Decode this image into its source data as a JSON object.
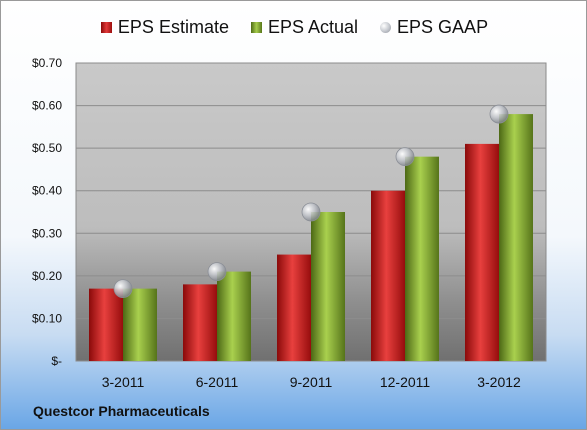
{
  "chart_data": {
    "type": "bar",
    "categories": [
      "3-2011",
      "6-2011",
      "9-2011",
      "12-2011",
      "3-2012"
    ],
    "series": [
      {
        "name": "EPS Estimate",
        "values": [
          0.17,
          0.18,
          0.25,
          0.4,
          0.51
        ]
      },
      {
        "name": "EPS Actual",
        "values": [
          0.17,
          0.21,
          0.35,
          0.48,
          0.58
        ]
      },
      {
        "name": "EPS GAAP",
        "values": [
          0.17,
          0.21,
          0.35,
          0.48,
          0.58
        ],
        "kind": "marker"
      }
    ],
    "yticks": [
      "$-",
      "$0.10",
      "$0.20",
      "$0.30",
      "$0.40",
      "$0.50",
      "$0.60",
      "$0.70"
    ],
    "ylim": [
      0,
      0.7
    ],
    "grid": true,
    "legend_position": "top"
  },
  "legend": {
    "estimate": "EPS Estimate",
    "actual": "EPS Actual",
    "gaap": "EPS GAAP"
  },
  "footer": {
    "company": "Questcor Pharmaceuticals"
  },
  "colors": {
    "estimate": "#c8161d",
    "actual": "#8cb43a",
    "gaap": "#a9adb5"
  }
}
